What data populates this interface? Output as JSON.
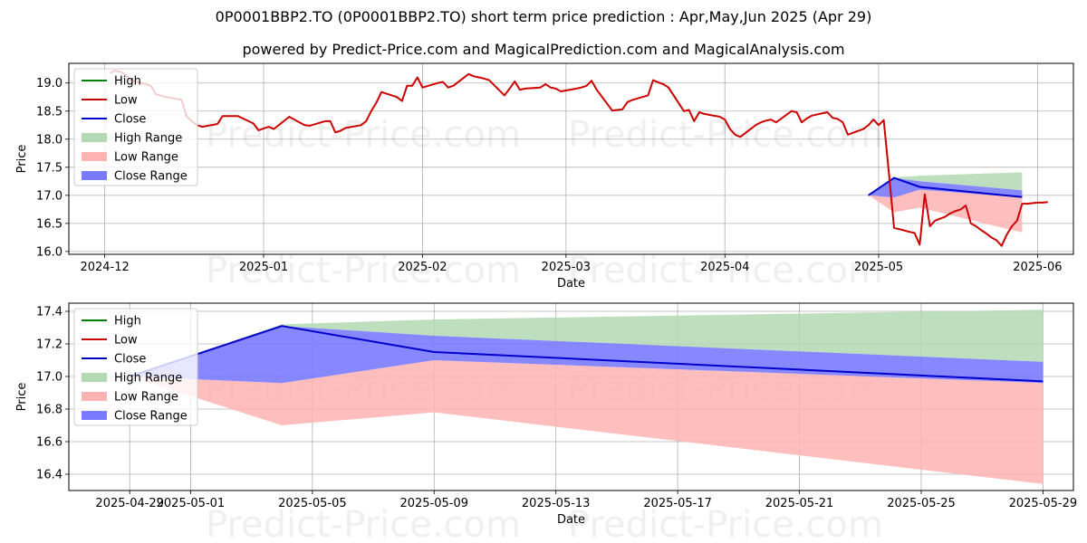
{
  "title": "0P0001BBP2.TO (0P0001BBP2.TO) short term price prediction : Apr,May,Jun 2025 (Apr 29)",
  "subtitle": "powered by Predict-Price.com and MagicalPrediction.com and MagicalAnalysis.com",
  "watermark": "Predict-Price.com",
  "chart_data": [
    {
      "type": "line",
      "xlabel": "Date",
      "ylabel": "Price",
      "xlim": [
        "2024-11-24",
        "2025-06-08"
      ],
      "ylim": [
        15.95,
        19.35
      ],
      "x_ticks": [
        "2024-12",
        "2025-01",
        "2025-02",
        "2025-03",
        "2025-04",
        "2025-05",
        "2025-06"
      ],
      "y_ticks": [
        16.0,
        16.5,
        17.0,
        17.5,
        18.0,
        18.5,
        19.0
      ],
      "grid": true,
      "legend": "top-left",
      "legend_entries": [
        "High",
        "Low",
        "Close",
        "High Range",
        "Low Range",
        "Close Range"
      ],
      "colors": {
        "high": "#008000",
        "low": "#cc0000",
        "close": "#0000cc",
        "high_range": "#b3d9b3",
        "low_range": "#ffb3b3",
        "close_range": "#7a7aff"
      },
      "series": [
        {
          "name": "Low",
          "points": [
            [
              "2024-12-02",
              19.18
            ],
            [
              "2024-12-03",
              19.22
            ],
            [
              "2024-12-04",
              19.2
            ],
            [
              "2024-12-05",
              19.15
            ],
            [
              "2024-12-06",
              19.05
            ],
            [
              "2024-12-09",
              18.98
            ],
            [
              "2024-12-10",
              18.95
            ],
            [
              "2024-12-11",
              18.8
            ],
            [
              "2024-12-13",
              18.75
            ],
            [
              "2024-12-16",
              18.7
            ],
            [
              "2024-12-17",
              18.4
            ],
            [
              "2024-12-18",
              18.32
            ],
            [
              "2024-12-19",
              18.25
            ],
            [
              "2024-12-20",
              18.22
            ],
            [
              "2024-12-23",
              18.27
            ],
            [
              "2024-12-24",
              18.41
            ],
            [
              "2024-12-27",
              18.41
            ],
            [
              "2024-12-30",
              18.28
            ],
            [
              "2024-12-31",
              18.16
            ],
            [
              "2025-01-02",
              18.22
            ],
            [
              "2025-01-03",
              18.18
            ],
            [
              "2025-01-06",
              18.4
            ],
            [
              "2025-01-07",
              18.35
            ],
            [
              "2025-01-08",
              18.3
            ],
            [
              "2025-01-09",
              18.25
            ],
            [
              "2025-01-10",
              18.24
            ],
            [
              "2025-01-13",
              18.32
            ],
            [
              "2025-01-14",
              18.32
            ],
            [
              "2025-01-15",
              18.12
            ],
            [
              "2025-01-16",
              18.15
            ],
            [
              "2025-01-17",
              18.2
            ],
            [
              "2025-01-20",
              18.25
            ],
            [
              "2025-01-21",
              18.32
            ],
            [
              "2025-01-22",
              18.5
            ],
            [
              "2025-01-23",
              18.65
            ],
            [
              "2025-01-24",
              18.84
            ],
            [
              "2025-01-27",
              18.75
            ],
            [
              "2025-01-28",
              18.68
            ],
            [
              "2025-01-29",
              18.95
            ],
            [
              "2025-01-30",
              18.95
            ],
            [
              "2025-01-31",
              19.1
            ],
            [
              "2025-02-01",
              18.92
            ],
            [
              "2025-02-04",
              19.0
            ],
            [
              "2025-02-05",
              19.02
            ],
            [
              "2025-02-06",
              18.92
            ],
            [
              "2025-02-07",
              18.95
            ],
            [
              "2025-02-10",
              19.16
            ],
            [
              "2025-02-11",
              19.12
            ],
            [
              "2025-02-12",
              19.1
            ],
            [
              "2025-02-13",
              19.08
            ],
            [
              "2025-02-14",
              19.05
            ],
            [
              "2025-02-17",
              18.78
            ],
            [
              "2025-02-18",
              18.9
            ],
            [
              "2025-02-19",
              19.03
            ],
            [
              "2025-02-20",
              18.88
            ],
            [
              "2025-02-21",
              18.9
            ],
            [
              "2025-02-24",
              18.92
            ],
            [
              "2025-02-25",
              18.98
            ],
            [
              "2025-02-26",
              18.92
            ],
            [
              "2025-02-27",
              18.9
            ],
            [
              "2025-02-28",
              18.85
            ],
            [
              "2025-03-03",
              18.9
            ],
            [
              "2025-03-04",
              18.92
            ],
            [
              "2025-03-05",
              18.95
            ],
            [
              "2025-03-06",
              19.04
            ],
            [
              "2025-03-07",
              18.88
            ],
            [
              "2025-03-10",
              18.51
            ],
            [
              "2025-03-11",
              18.52
            ],
            [
              "2025-03-12",
              18.53
            ],
            [
              "2025-03-13",
              18.66
            ],
            [
              "2025-03-14",
              18.7
            ],
            [
              "2025-03-17",
              18.78
            ],
            [
              "2025-03-18",
              19.05
            ],
            [
              "2025-03-19",
              19.01
            ],
            [
              "2025-03-20",
              18.98
            ],
            [
              "2025-03-21",
              18.92
            ],
            [
              "2025-03-24",
              18.5
            ],
            [
              "2025-03-25",
              18.52
            ],
            [
              "2025-03-26",
              18.32
            ],
            [
              "2025-03-27",
              18.48
            ],
            [
              "2025-03-28",
              18.45
            ],
            [
              "2025-03-31",
              18.4
            ],
            [
              "2025-04-01",
              18.35
            ],
            [
              "2025-04-02",
              18.18
            ],
            [
              "2025-04-03",
              18.08
            ],
            [
              "2025-04-04",
              18.04
            ],
            [
              "2025-04-07",
              18.25
            ],
            [
              "2025-04-08",
              18.3
            ],
            [
              "2025-04-09",
              18.33
            ],
            [
              "2025-04-10",
              18.35
            ],
            [
              "2025-04-11",
              18.3
            ],
            [
              "2025-04-14",
              18.5
            ],
            [
              "2025-04-15",
              18.48
            ],
            [
              "2025-04-16",
              18.3
            ],
            [
              "2025-04-17",
              18.37
            ],
            [
              "2025-04-18",
              18.42
            ],
            [
              "2025-04-21",
              18.48
            ],
            [
              "2025-04-22",
              18.38
            ],
            [
              "2025-04-23",
              18.36
            ],
            [
              "2025-04-24",
              18.3
            ],
            [
              "2025-04-25",
              18.08
            ],
            [
              "2025-04-28",
              18.18
            ],
            [
              "2025-04-29",
              18.25
            ],
            [
              "2025-04-30",
              18.35
            ],
            [
              "2025-05-01",
              18.25
            ],
            [
              "2025-05-02",
              18.34
            ],
            [
              "2025-05-03",
              17.4
            ],
            [
              "2025-05-04",
              16.42
            ],
            [
              "2025-05-05",
              16.4
            ],
            [
              "2025-05-07",
              16.35
            ],
            [
              "2025-05-08",
              16.33
            ],
            [
              "2025-05-09",
              16.12
            ],
            [
              "2025-05-10",
              17.02
            ],
            [
              "2025-05-11",
              16.45
            ],
            [
              "2025-05-12",
              16.55
            ],
            [
              "2025-05-14",
              16.62
            ],
            [
              "2025-05-15",
              16.68
            ],
            [
              "2025-05-16",
              16.72
            ],
            [
              "2025-05-17",
              16.75
            ],
            [
              "2025-05-18",
              16.82
            ],
            [
              "2025-05-19",
              16.5
            ],
            [
              "2025-05-20",
              16.45
            ],
            [
              "2025-05-21",
              16.38
            ],
            [
              "2025-05-22",
              16.32
            ],
            [
              "2025-05-23",
              16.25
            ],
            [
              "2025-05-24",
              16.2
            ],
            [
              "2025-05-25",
              16.1
            ],
            [
              "2025-05-26",
              16.3
            ],
            [
              "2025-05-27",
              16.45
            ],
            [
              "2025-05-28",
              16.55
            ],
            [
              "2025-05-29",
              16.85
            ],
            [
              "2025-05-30",
              16.85
            ],
            [
              "2025-05-31",
              16.86
            ],
            [
              "2025-06-01",
              16.87
            ],
            [
              "2025-06-02",
              16.87
            ],
            [
              "2025-06-03",
              16.88
            ]
          ]
        }
      ]
    },
    {
      "type": "line",
      "xlabel": "Date",
      "ylabel": "Price",
      "xlim": [
        "2025-04-27",
        "2025-05-30"
      ],
      "ylim": [
        16.3,
        17.45
      ],
      "x_ticks": [
        "2025-04-29",
        "2025-05-01",
        "2025-05-05",
        "2025-05-09",
        "2025-05-13",
        "2025-05-17",
        "2025-05-21",
        "2025-05-25",
        "2025-05-29"
      ],
      "y_ticks": [
        16.4,
        16.6,
        16.8,
        17.0,
        17.2,
        17.4
      ],
      "grid": true,
      "legend": "top-left",
      "legend_entries": [
        "High",
        "Low",
        "Close",
        "High Range",
        "Low Range",
        "Close Range"
      ],
      "dates": [
        "2025-04-29",
        "2025-05-04",
        "2025-05-09",
        "2025-05-29"
      ],
      "close": [
        17.0,
        17.31,
        17.15,
        16.97
      ],
      "close_range": {
        "upper": [
          17.0,
          17.31,
          17.25,
          17.09
        ],
        "lower": [
          17.0,
          16.96,
          17.1,
          16.96
        ]
      },
      "high_range": {
        "upper": [
          17.0,
          17.32,
          17.35,
          17.41
        ],
        "lower": [
          17.0,
          17.31,
          17.25,
          17.09
        ]
      },
      "low_range": {
        "upper": [
          17.0,
          16.96,
          17.1,
          16.96
        ],
        "lower": [
          17.0,
          16.7,
          16.78,
          16.34
        ]
      }
    }
  ]
}
